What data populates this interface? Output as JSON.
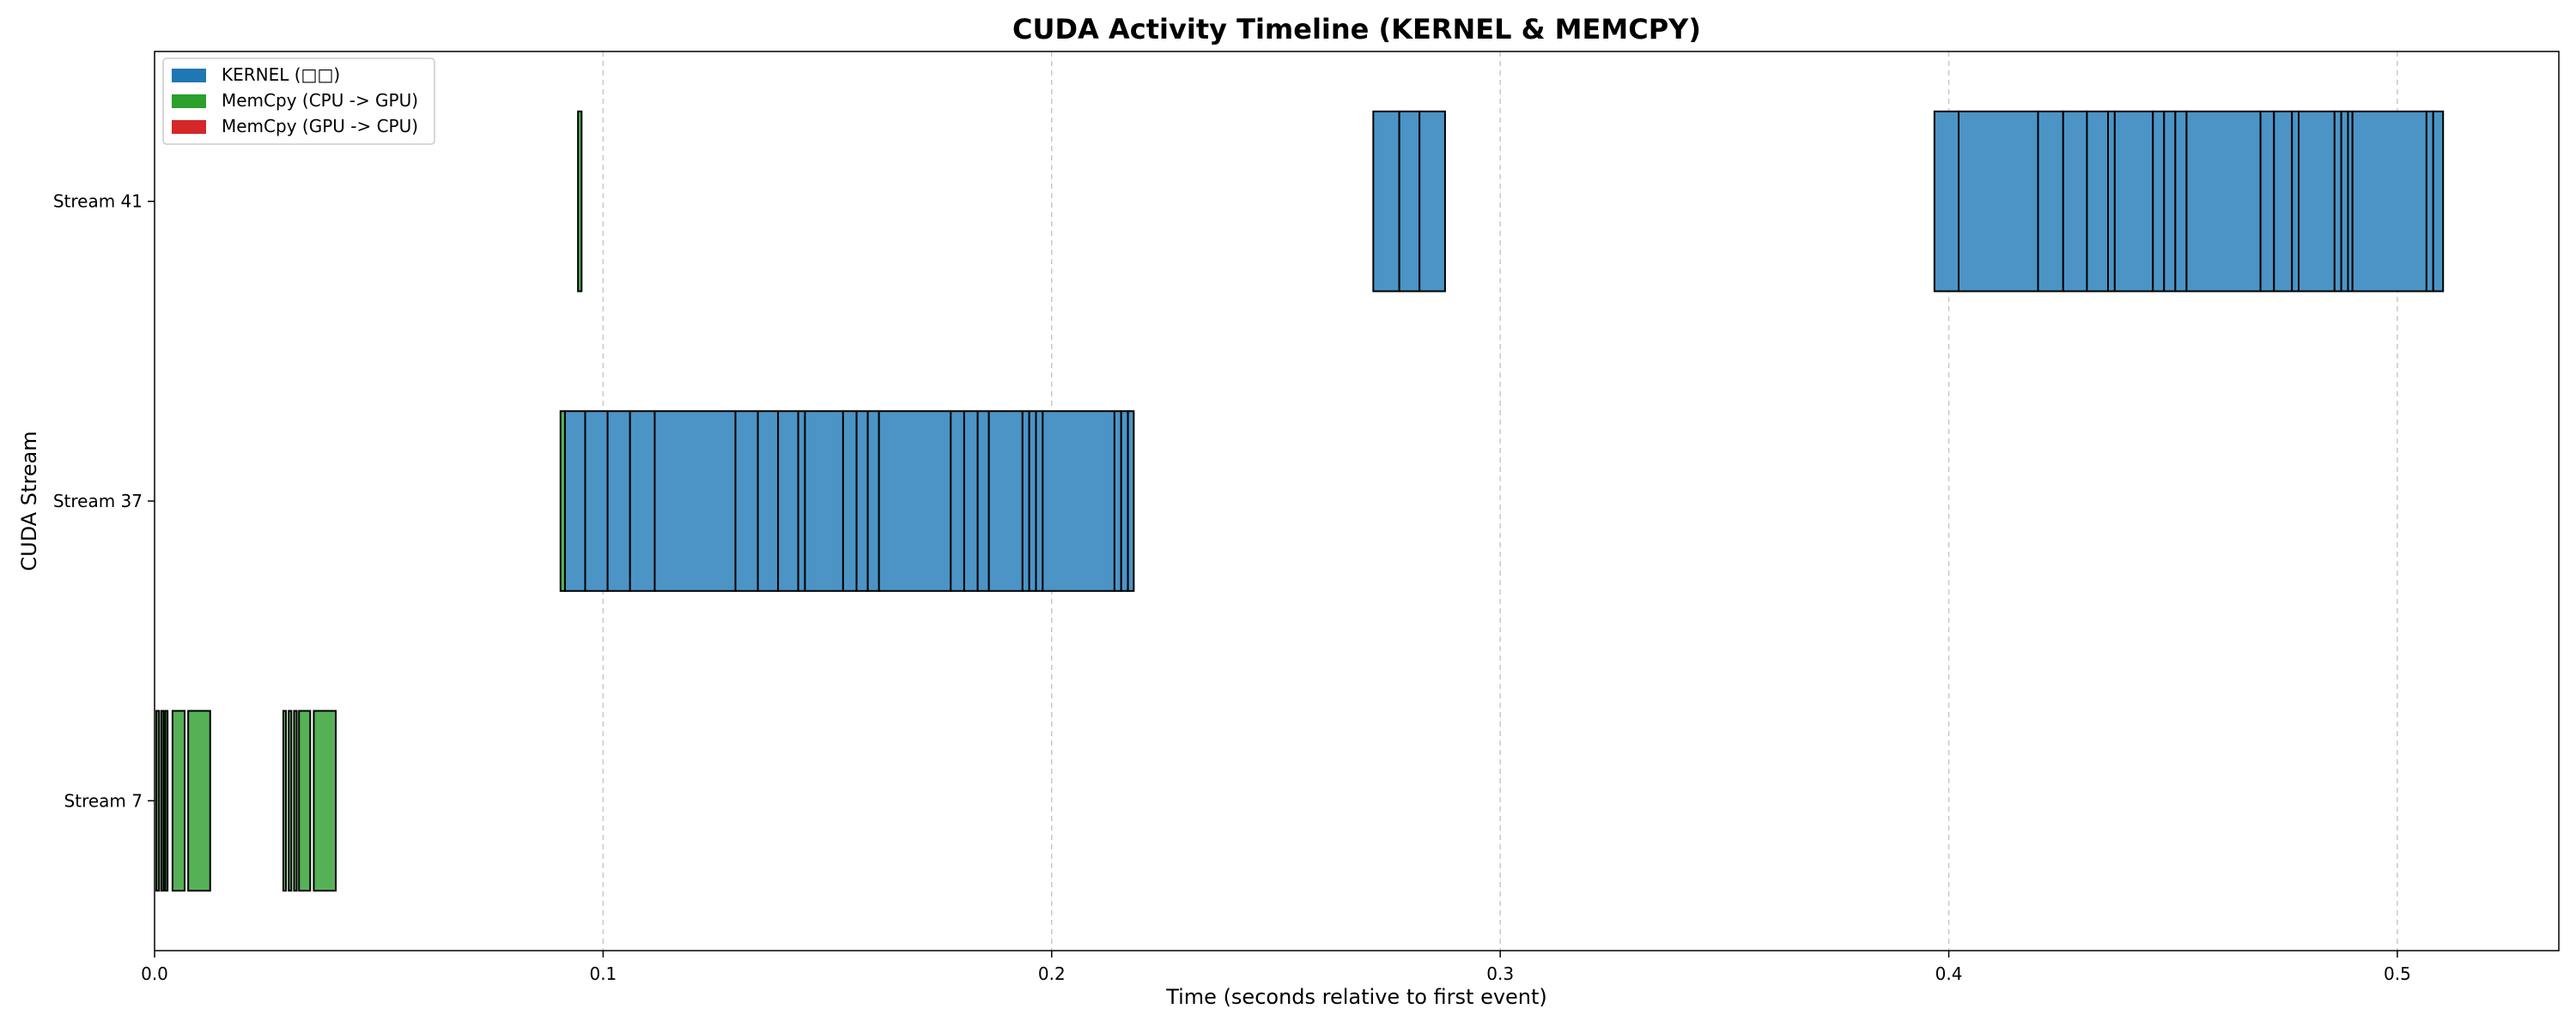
{
  "chart_data": {
    "type": "timeline",
    "title": "CUDA Activity Timeline (KERNEL & MEMCPY)",
    "xlabel": "Time (seconds relative to first event)",
    "ylabel": "CUDA Stream",
    "xlim": [
      0.0,
      0.536
    ],
    "xticks": [
      0.0,
      0.1,
      0.2,
      0.3,
      0.4,
      0.5
    ],
    "xtick_labels": [
      "0.0",
      "0.1",
      "0.2",
      "0.3",
      "0.4",
      "0.5"
    ],
    "grid": "x-dashed",
    "legend_position": "top-left",
    "legend": [
      {
        "key": "kernel",
        "label": "KERNEL (□□)",
        "color": "#1f77b4"
      },
      {
        "key": "htod",
        "label": "MemCpy (CPU -> GPU)",
        "color": "#2ca02c"
      },
      {
        "key": "dtoh",
        "label": "MemCpy (GPU -> CPU)",
        "color": "#d62728"
      }
    ],
    "streams": [
      {
        "label": "Stream 41",
        "segments": [
          {
            "start": 0.0944,
            "end": 0.0952,
            "type": "htod"
          },
          {
            "start": 0.2717,
            "end": 0.2775,
            "type": "kernel"
          },
          {
            "start": 0.2775,
            "end": 0.282,
            "type": "kernel"
          },
          {
            "start": 0.282,
            "end": 0.2877,
            "type": "kernel"
          },
          {
            "start": 0.3968,
            "end": 0.4022,
            "type": "kernel"
          },
          {
            "start": 0.4022,
            "end": 0.4199,
            "type": "kernel"
          },
          {
            "start": 0.4199,
            "end": 0.4255,
            "type": "kernel"
          },
          {
            "start": 0.4255,
            "end": 0.4308,
            "type": "kernel"
          },
          {
            "start": 0.4308,
            "end": 0.4355,
            "type": "kernel"
          },
          {
            "start": 0.4355,
            "end": 0.437,
            "type": "kernel"
          },
          {
            "start": 0.437,
            "end": 0.4455,
            "type": "kernel"
          },
          {
            "start": 0.4455,
            "end": 0.448,
            "type": "kernel"
          },
          {
            "start": 0.448,
            "end": 0.4505,
            "type": "kernel"
          },
          {
            "start": 0.4505,
            "end": 0.453,
            "type": "kernel"
          },
          {
            "start": 0.453,
            "end": 0.4695,
            "type": "kernel"
          },
          {
            "start": 0.4695,
            "end": 0.4725,
            "type": "kernel"
          },
          {
            "start": 0.4725,
            "end": 0.4765,
            "type": "kernel"
          },
          {
            "start": 0.4765,
            "end": 0.478,
            "type": "kernel"
          },
          {
            "start": 0.478,
            "end": 0.486,
            "type": "kernel"
          },
          {
            "start": 0.486,
            "end": 0.4875,
            "type": "kernel"
          },
          {
            "start": 0.4875,
            "end": 0.489,
            "type": "kernel"
          },
          {
            "start": 0.489,
            "end": 0.49,
            "type": "kernel"
          },
          {
            "start": 0.49,
            "end": 0.5065,
            "type": "kernel"
          },
          {
            "start": 0.5065,
            "end": 0.508,
            "type": "kernel"
          },
          {
            "start": 0.508,
            "end": 0.5102,
            "type": "kernel"
          }
        ]
      },
      {
        "label": "Stream 37",
        "segments": [
          {
            "start": 0.0905,
            "end": 0.0915,
            "type": "htod"
          },
          {
            "start": 0.0915,
            "end": 0.096,
            "type": "kernel"
          },
          {
            "start": 0.096,
            "end": 0.101,
            "type": "kernel"
          },
          {
            "start": 0.101,
            "end": 0.106,
            "type": "kernel"
          },
          {
            "start": 0.106,
            "end": 0.1115,
            "type": "kernel"
          },
          {
            "start": 0.1115,
            "end": 0.1295,
            "type": "kernel"
          },
          {
            "start": 0.1295,
            "end": 0.1345,
            "type": "kernel"
          },
          {
            "start": 0.1345,
            "end": 0.139,
            "type": "kernel"
          },
          {
            "start": 0.139,
            "end": 0.1435,
            "type": "kernel"
          },
          {
            "start": 0.1435,
            "end": 0.145,
            "type": "kernel"
          },
          {
            "start": 0.145,
            "end": 0.1535,
            "type": "kernel"
          },
          {
            "start": 0.1535,
            "end": 0.1565,
            "type": "kernel"
          },
          {
            "start": 0.1565,
            "end": 0.159,
            "type": "kernel"
          },
          {
            "start": 0.159,
            "end": 0.1615,
            "type": "kernel"
          },
          {
            "start": 0.1615,
            "end": 0.1775,
            "type": "kernel"
          },
          {
            "start": 0.1775,
            "end": 0.1805,
            "type": "kernel"
          },
          {
            "start": 0.1805,
            "end": 0.1835,
            "type": "kernel"
          },
          {
            "start": 0.1835,
            "end": 0.186,
            "type": "kernel"
          },
          {
            "start": 0.186,
            "end": 0.1935,
            "type": "kernel"
          },
          {
            "start": 0.1935,
            "end": 0.195,
            "type": "kernel"
          },
          {
            "start": 0.195,
            "end": 0.1965,
            "type": "kernel"
          },
          {
            "start": 0.1965,
            "end": 0.198,
            "type": "kernel"
          },
          {
            "start": 0.198,
            "end": 0.214,
            "type": "kernel"
          },
          {
            "start": 0.214,
            "end": 0.2155,
            "type": "kernel"
          },
          {
            "start": 0.2155,
            "end": 0.217,
            "type": "kernel"
          },
          {
            "start": 0.217,
            "end": 0.2183,
            "type": "kernel"
          }
        ]
      },
      {
        "label": "Stream 7",
        "segments": [
          {
            "start": 0.0004,
            "end": 0.001,
            "type": "htod"
          },
          {
            "start": 0.0015,
            "end": 0.002,
            "type": "htod"
          },
          {
            "start": 0.0024,
            "end": 0.0029,
            "type": "htod"
          },
          {
            "start": 0.004,
            "end": 0.0067,
            "type": "htod"
          },
          {
            "start": 0.0075,
            "end": 0.0124,
            "type": "htod"
          },
          {
            "start": 0.0287,
            "end": 0.0293,
            "type": "htod"
          },
          {
            "start": 0.0299,
            "end": 0.0305,
            "type": "htod"
          },
          {
            "start": 0.0311,
            "end": 0.0317,
            "type": "htod"
          },
          {
            "start": 0.0322,
            "end": 0.0347,
            "type": "htod"
          },
          {
            "start": 0.0355,
            "end": 0.0404,
            "type": "htod"
          }
        ]
      }
    ]
  }
}
